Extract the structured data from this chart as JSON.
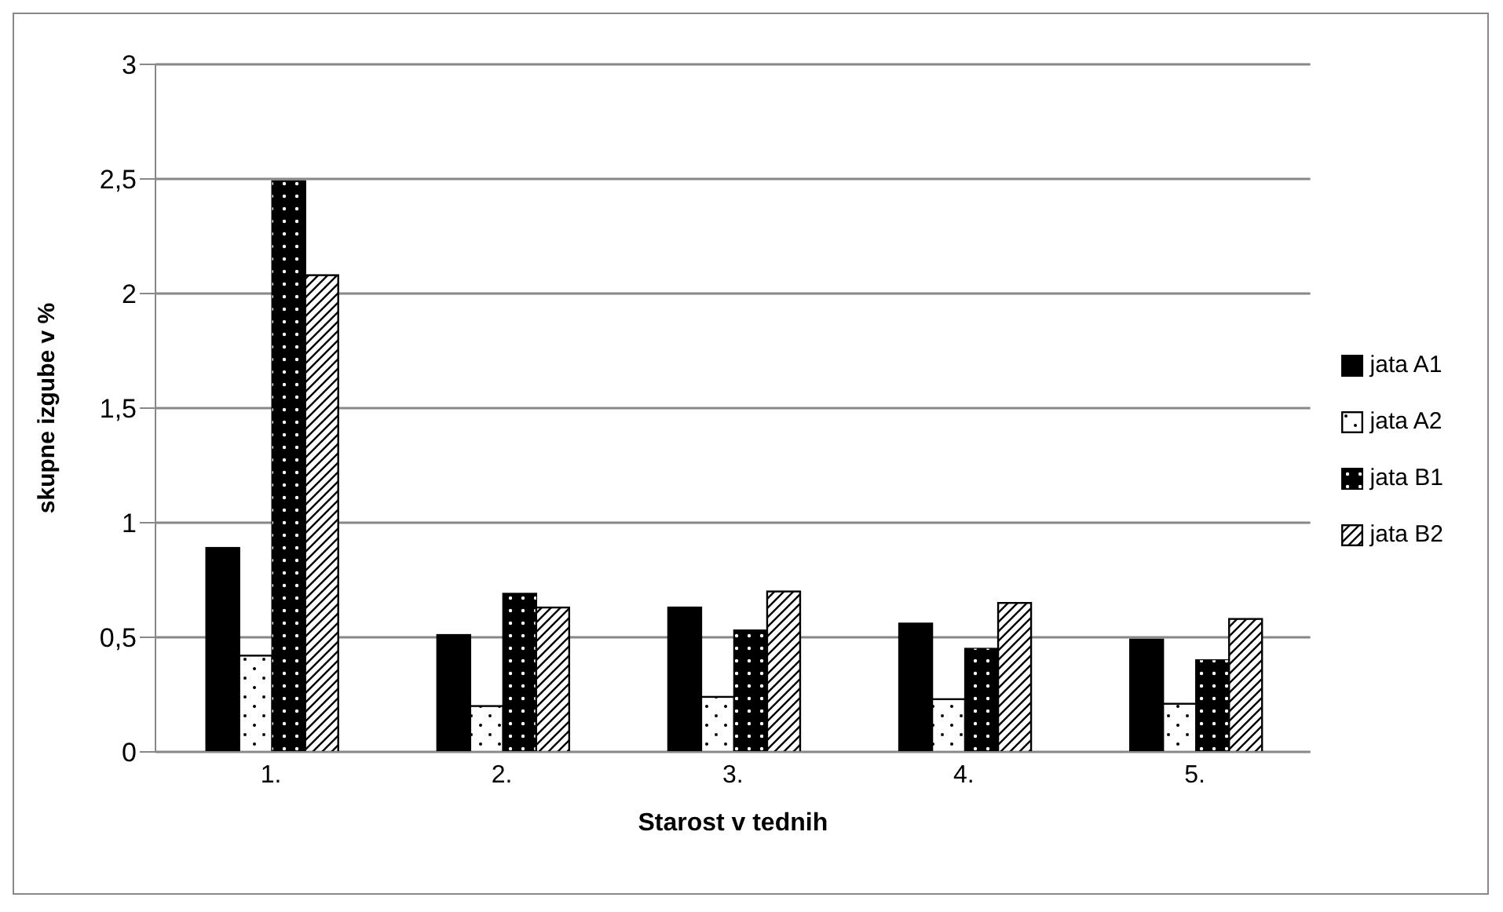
{
  "chart_data": {
    "type": "bar",
    "xlabel": "Starost v tednih",
    "ylabel": "skupne izgube v %",
    "categories": [
      "1.",
      "2.",
      "3.",
      "4.",
      "5."
    ],
    "series": [
      {
        "name": "jata A1",
        "color": "#000000",
        "values": [
          0.89,
          0.51,
          0.63,
          0.56,
          0.49
        ]
      },
      {
        "name": "jata A2",
        "color": "#ffffff",
        "values": [
          0.42,
          0.2,
          0.24,
          0.23,
          0.21
        ]
      },
      {
        "name": "jata B1",
        "color": "#000000",
        "values": [
          2.49,
          0.69,
          0.53,
          0.45,
          0.4
        ]
      },
      {
        "name": "jata B2",
        "color": "#ffffff",
        "values": [
          2.08,
          0.63,
          0.7,
          0.65,
          0.58
        ]
      }
    ],
    "ylim": [
      0,
      3
    ],
    "yticks": [
      0,
      {
        "value": 0.5,
        "label": "0,5"
      },
      1,
      {
        "value": 1.5,
        "label": "1,5"
      },
      2,
      {
        "value": 2.5,
        "label": "2,5"
      },
      3
    ],
    "grid": "y",
    "legend": "right"
  }
}
